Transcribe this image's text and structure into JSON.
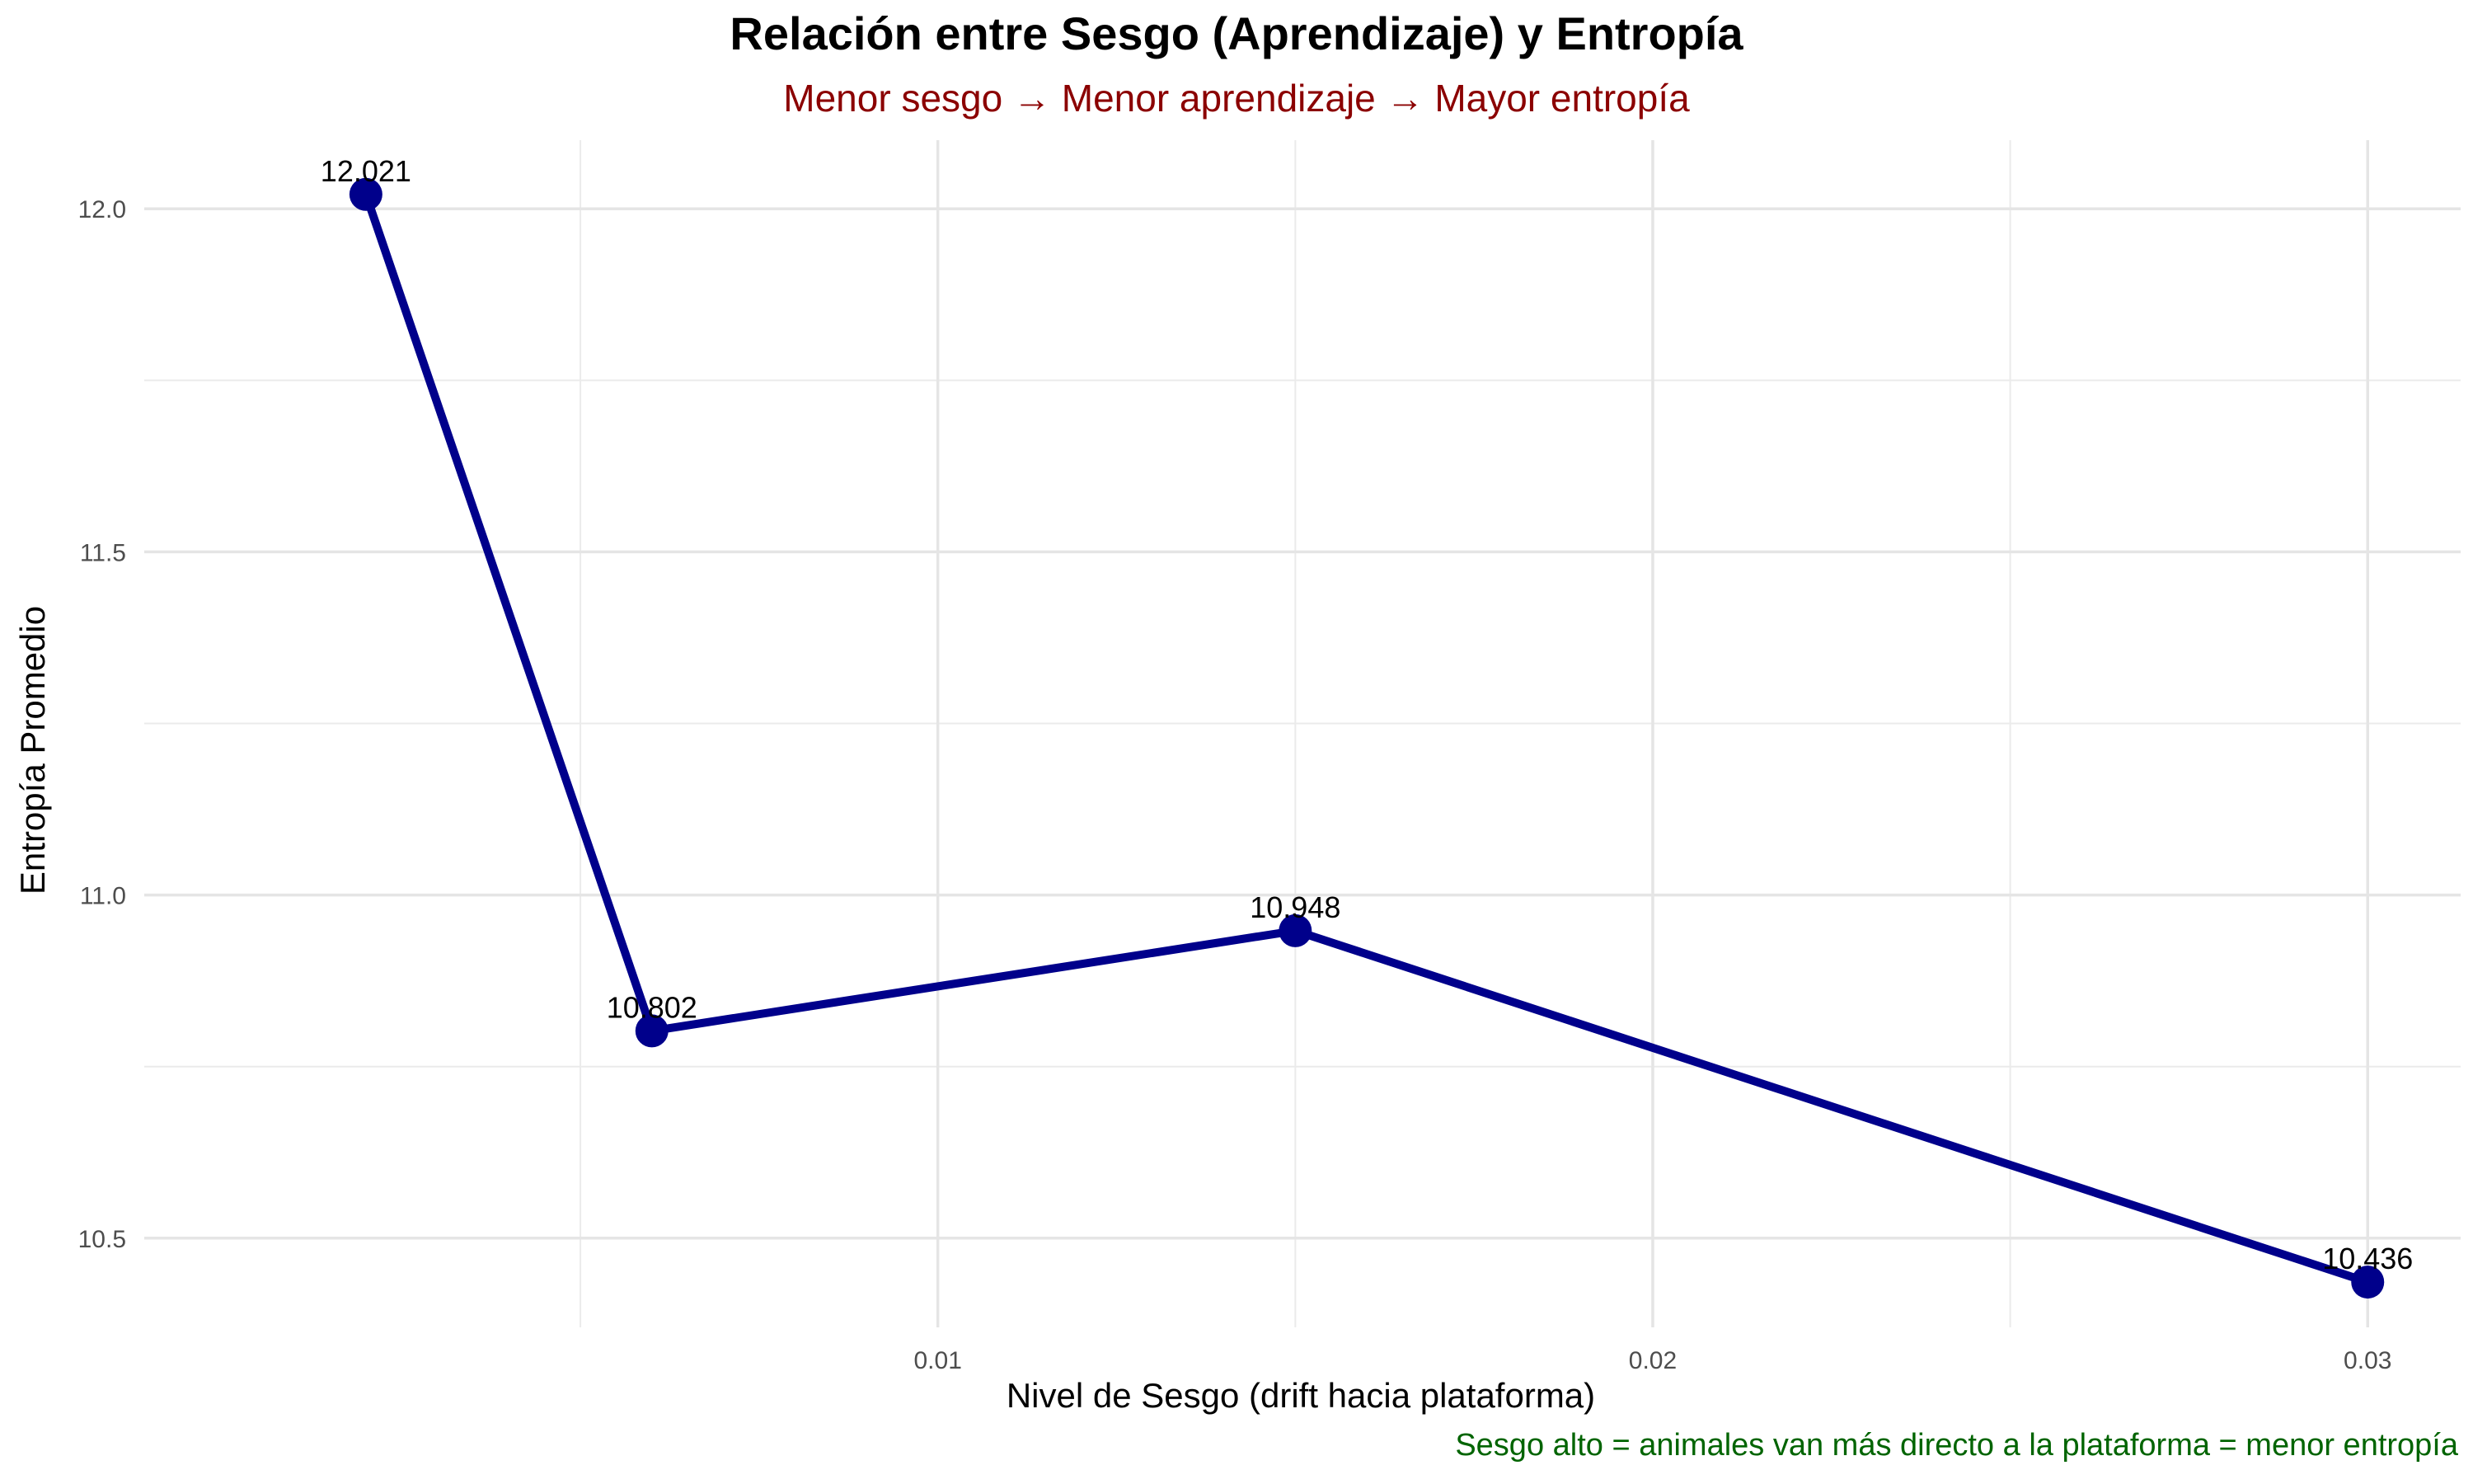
{
  "chart_data": {
    "type": "line",
    "title": "Relación entre Sesgo (Aprendizaje) y Entropía",
    "subtitle": "Menor sesgo → Menor aprendizaje → Mayor entropía",
    "caption": "Sesgo alto = animales van más directo a la plataforma = menor entropía",
    "xlabel": "Nivel de Sesgo (drift hacia plataforma)",
    "ylabel": "Entropía Promedio",
    "x": [
      0.002,
      0.006,
      0.015,
      0.03
    ],
    "y": [
      12.021,
      10.802,
      10.948,
      10.436
    ],
    "data_labels": [
      "12.021",
      "10.802",
      "10.948",
      "10.436"
    ],
    "xlim": [
      -0.0011,
      0.0313
    ],
    "ylim": [
      10.37,
      12.1
    ],
    "x_ticks": [
      0.01,
      0.02,
      0.03
    ],
    "x_tick_labels": [
      "0.01",
      "0.02",
      "0.03"
    ],
    "y_ticks": [
      10.5,
      11.0,
      11.5,
      12.0
    ],
    "y_tick_labels": [
      "10.5",
      "11.0",
      "11.5",
      "12.0"
    ],
    "grid": true,
    "line_color": "#00008B",
    "point_color": "#00008B",
    "title_color": "#000000",
    "subtitle_color": "#8B0000",
    "caption_color": "#006400"
  }
}
